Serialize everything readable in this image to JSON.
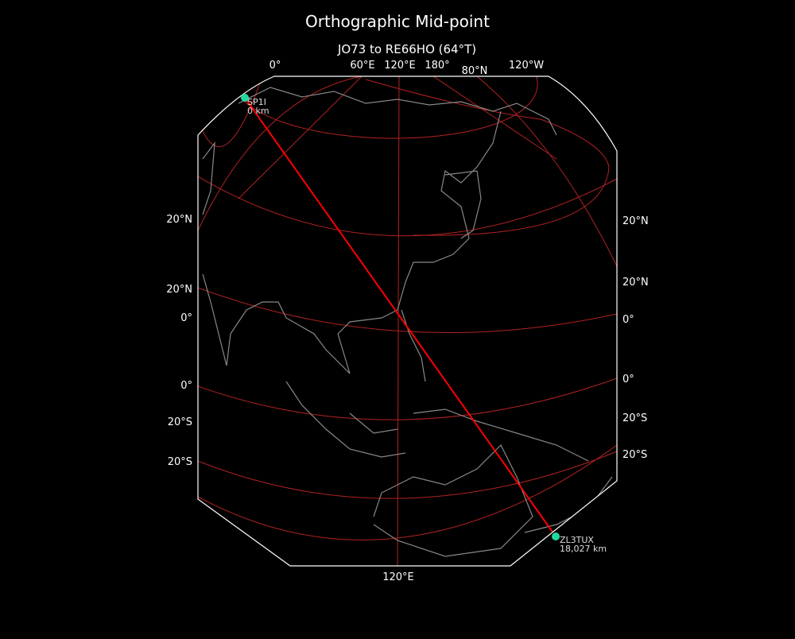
{
  "title": "Orthographic Mid-point",
  "subtitle": "JO73 to RE66HO (64°T)",
  "colors": {
    "background": "#000000",
    "path": "#ff0000",
    "graticule": "#b22222",
    "coast": "#888888",
    "frame": "#ffffff",
    "marker": "#20d9a0"
  },
  "graticule_labels": {
    "top": [
      "0°",
      "60°E",
      "120°E",
      "180°",
      "80°N",
      "120°W"
    ],
    "left": [
      "20°N",
      "20°N",
      "0°",
      "0°",
      "20°S",
      "20°S"
    ],
    "right": [
      "20°N",
      "20°N",
      "0°",
      "0°",
      "20°S",
      "20°S"
    ],
    "bottom": [
      "120°E"
    ]
  },
  "start": {
    "call": "SP1I",
    "distance": "0 km",
    "icon": "circle-marker"
  },
  "end": {
    "call": "ZL3TUX",
    "distance": "18,027 km",
    "icon": "circle-marker"
  }
}
